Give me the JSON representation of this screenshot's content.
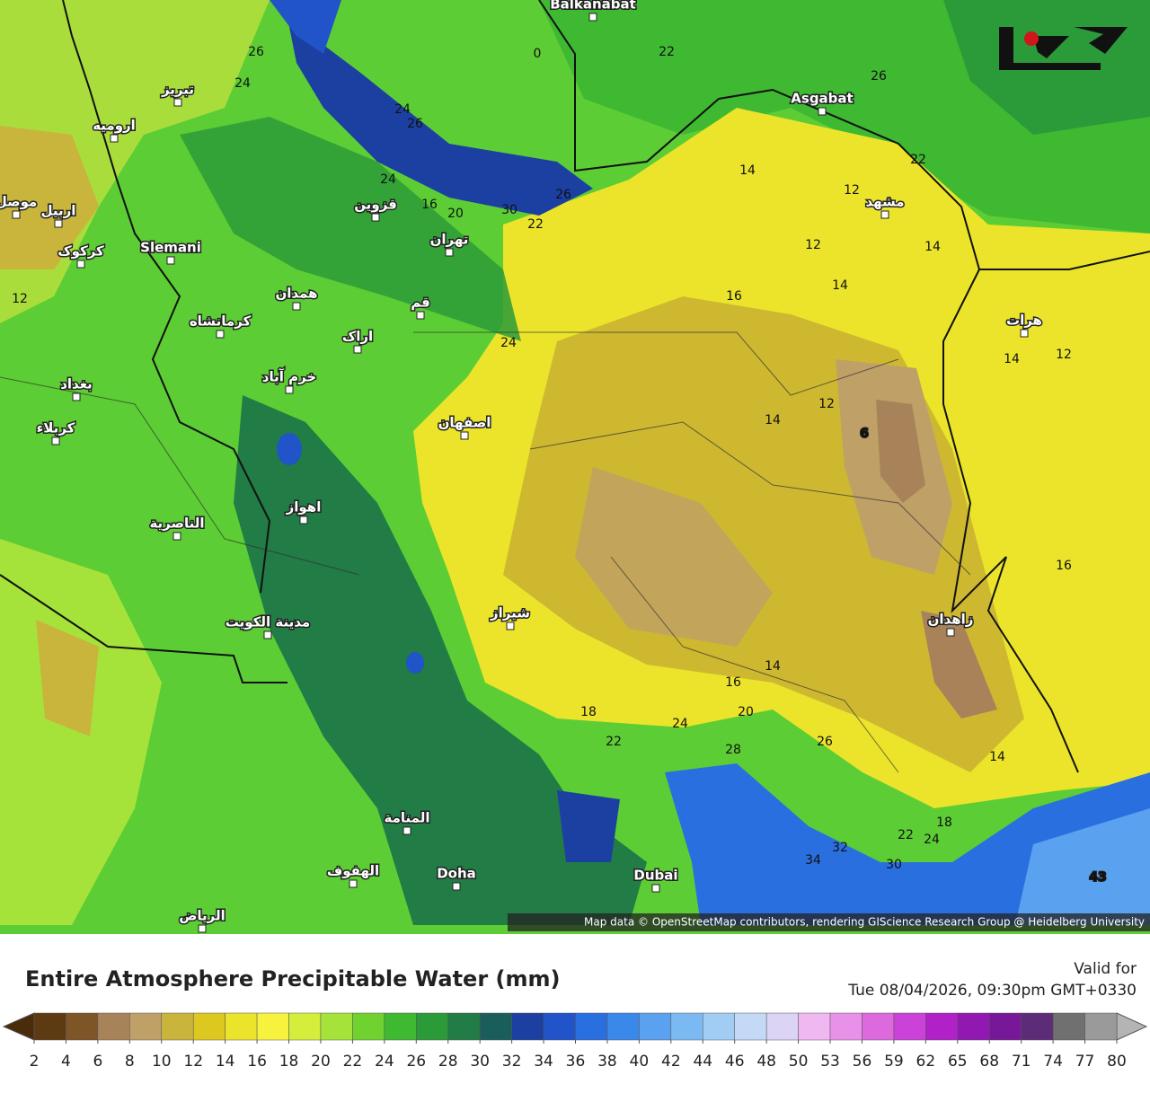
{
  "map": {
    "attribution": "Map data © OpenStreetMap contributors, rendering GIScience Research Group @ Heidelberg University",
    "city_labels": [
      "Balkanabat",
      "Asgabat",
      "تبریز",
      "ارومیه",
      "اربیل",
      "موصل",
      "کرکوک",
      "Slemani",
      "قزوین",
      "تهران",
      "همدان",
      "قم",
      "کرمانشاه",
      "اراک",
      "خرم آباد",
      "بغداد",
      "کربلاء",
      "اصفهان",
      "اهواز",
      "الناصریة",
      "مدینة الکویت",
      "شیراز",
      "المنامة",
      "الهفوف",
      "Doha",
      "Dubai",
      "الریاض",
      "مشهد",
      "هرات",
      "زاهدان"
    ],
    "contour_labels": [
      "26",
      "24",
      "24",
      "26",
      "22",
      "26",
      "22",
      "14",
      "12",
      "24",
      "16",
      "20",
      "30",
      "22",
      "26",
      "12",
      "14",
      "14",
      "16",
      "24",
      "14",
      "12",
      "12",
      "14",
      "6",
      "16",
      "14",
      "16",
      "20",
      "18",
      "24",
      "22",
      "28",
      "26",
      "14",
      "18",
      "22",
      "24",
      "32",
      "34",
      "30",
      "43",
      "12",
      "0"
    ]
  },
  "legend": {
    "title": "Entire Atmosphere Precipitable Water (mm)",
    "valid_label": "Valid for",
    "valid_time": "Tue 08/04/2026, 09:30pm GMT+0330",
    "ticks": [
      2,
      4,
      6,
      8,
      10,
      12,
      14,
      16,
      18,
      20,
      22,
      24,
      26,
      28,
      30,
      32,
      34,
      36,
      38,
      40,
      42,
      44,
      46,
      48,
      50,
      53,
      56,
      59,
      62,
      65,
      68,
      71,
      74,
      77,
      80
    ],
    "colors": [
      "#5e3a12",
      "#7d5526",
      "#a8835a",
      "#bfa067",
      "#c9b43c",
      "#dcc81f",
      "#ece42b",
      "#f6f23e",
      "#d4ee3b",
      "#a6e33a",
      "#6fd22f",
      "#3fb832",
      "#2b9b3a",
      "#217c45",
      "#1a5e5c",
      "#1c40a2",
      "#2054c8",
      "#2a6fe0",
      "#3b88eb",
      "#5aa1ef",
      "#7bb9f2",
      "#a1ccf4",
      "#c4d9f5",
      "#dcd4f4",
      "#f0b8f0",
      "#e891e8",
      "#dc6ade",
      "#cb42d8",
      "#b022c8",
      "#9119b1",
      "#771898",
      "#5c2c78",
      "#707070",
      "#9a9a9a"
    ],
    "under_color": "#4a2c0b",
    "over_color": "#b4b4b4"
  }
}
